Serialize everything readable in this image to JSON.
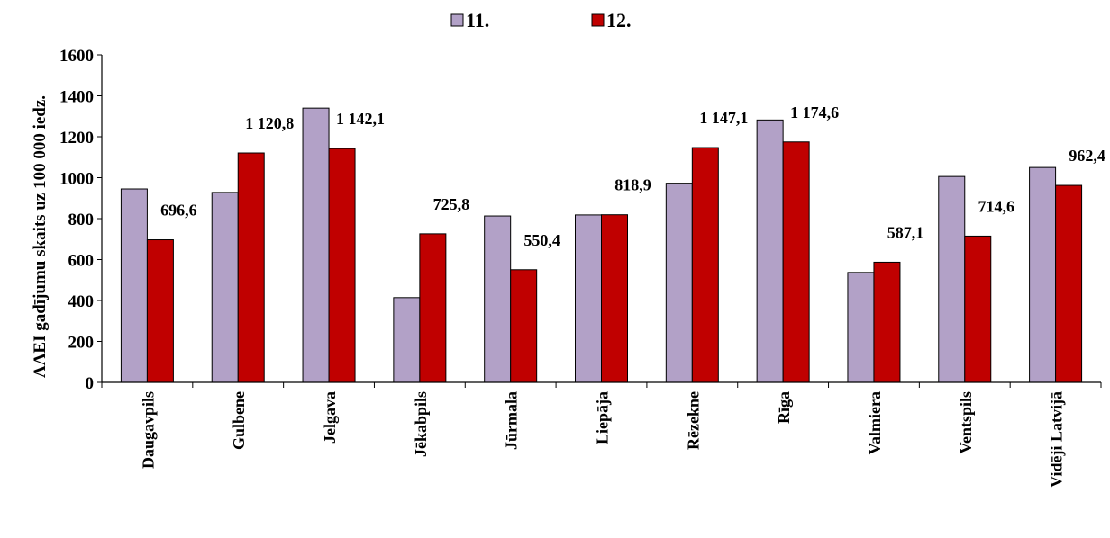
{
  "chart_data": {
    "type": "bar",
    "ylabel": "AAEI gadījumu skaits uz 100 000 iedz.",
    "xlabel": "",
    "ylim": [
      0,
      1600
    ],
    "yticks": [
      "0",
      "200",
      "400",
      "600",
      "800",
      "1000",
      "1200",
      "1400",
      "1600"
    ],
    "grid": false,
    "legend_position": "top-center",
    "categories": [
      "Daugavpils",
      "Gulbene",
      "Jelgava",
      "Jēkabpils",
      "Jūrmala",
      "Liepāja",
      "Rēzekne",
      "Rīga",
      "Valmiera",
      "Ventspils",
      "Vidēji Latvijā"
    ],
    "series": [
      {
        "name": "11.",
        "color": "#B2A1C7",
        "values": [
          945,
          928,
          1340,
          414,
          813,
          818,
          973,
          1282,
          537,
          1006,
          1050
        ]
      },
      {
        "name": "12.",
        "color": "#C00000",
        "values": [
          696.6,
          1120.8,
          1142.1,
          725.8,
          550.4,
          818.9,
          1147.1,
          1174.6,
          587.1,
          714.6,
          962.4
        ],
        "labels": [
          "696,6",
          "1 120,8",
          "1 142,1",
          "725,8",
          "550,4",
          "818,9",
          "1 147,1",
          "1 174,6",
          "587,1",
          "714,6",
          "962,4"
        ]
      }
    ]
  }
}
